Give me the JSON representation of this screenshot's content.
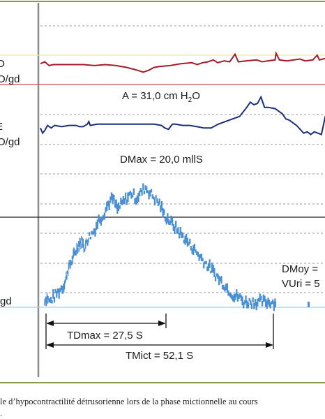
{
  "colors": {
    "frame": "#8a9a44",
    "pressure": "#a31b2c",
    "flow_line": "#1c2d7a",
    "flow_bars": "#4a8fd4",
    "yellow_line": "#f2e98a",
    "red_line": "#cc4a4a",
    "blue_line": "#a9cdea",
    "grid": "#9a9a9a",
    "axis": "#8c8c8c"
  },
  "left_labels": {
    "l1": "D",
    "l2": "O/gd",
    "l3": "E",
    "l4": "O/gd",
    "l5": "gd"
  },
  "annotations": {
    "amplitude": "A = 31,0 cm H",
    "amplitude_sub": "2",
    "amplitude_tail": "O",
    "dmax": "DMax = 20,0 mllS",
    "dmoy": "DMoy = ",
    "vuri": "VUri = 5",
    "tdmax": "TDmax = 27,5 S",
    "tmict": "TMict = 52,1 S"
  },
  "caption": {
    "line1": "le d’hypocontractilité détrusorienne lors de la phase mictionnelle au cours",
    "line2": "."
  },
  "chart_data": {
    "type": "line",
    "title": "",
    "xlabel": "",
    "ylabel": "",
    "series": [
      {
        "values": [
          [
            0,
            8
          ],
          [
            4,
            10
          ],
          [
            8,
            6
          ],
          [
            12,
            7
          ],
          [
            20,
            7
          ],
          [
            30,
            7
          ],
          [
            40,
            7
          ],
          [
            50,
            6
          ],
          [
            60,
            7
          ],
          [
            70,
            6
          ],
          [
            80,
            4
          ],
          [
            90,
            1
          ],
          [
            95,
            -1
          ],
          [
            100,
            1
          ],
          [
            105,
            4
          ],
          [
            110,
            5
          ],
          [
            120,
            6
          ],
          [
            130,
            8
          ],
          [
            140,
            9
          ],
          [
            145,
            7
          ],
          [
            150,
            9
          ],
          [
            155,
            10
          ],
          [
            160,
            12
          ],
          [
            164,
            9
          ],
          [
            170,
            11
          ],
          [
            175,
            10
          ],
          [
            180,
            18
          ],
          [
            183,
            10
          ],
          [
            190,
            11
          ],
          [
            200,
            12
          ],
          [
            205,
            10
          ],
          [
            210,
            11
          ],
          [
            217,
            12
          ],
          [
            218,
            19
          ],
          [
            221,
            12
          ],
          [
            228,
            11
          ],
          [
            240,
            13
          ],
          [
            245,
            11
          ],
          [
            252,
            12
          ],
          [
            256,
            17
          ],
          [
            258,
            12
          ],
          [
            265,
            14
          ],
          [
            270,
            12
          ]
        ]
      },
      {
        "values": [
          [
            0,
            2
          ],
          [
            3,
            -2
          ],
          [
            6,
            0
          ],
          [
            10,
            4
          ],
          [
            15,
            2
          ],
          [
            20,
            4
          ],
          [
            30,
            3
          ],
          [
            40,
            4
          ],
          [
            50,
            4
          ],
          [
            55,
            3
          ],
          [
            60,
            3
          ],
          [
            66,
            5
          ],
          [
            68,
            7
          ],
          [
            70,
            4
          ],
          [
            80,
            5
          ],
          [
            90,
            5
          ],
          [
            100,
            5
          ],
          [
            110,
            5
          ],
          [
            120,
            5
          ],
          [
            130,
            5
          ],
          [
            140,
            5
          ],
          [
            150,
            5
          ],
          [
            160,
            5
          ],
          [
            170,
            4
          ],
          [
            175,
            2
          ],
          [
            180,
            1
          ],
          [
            184,
            4
          ],
          [
            186,
            5
          ],
          [
            190,
            5
          ],
          [
            200,
            4
          ],
          [
            210,
            4
          ],
          [
            220,
            3
          ],
          [
            230,
            2
          ],
          [
            240,
            2
          ],
          [
            250,
            5
          ],
          [
            260,
            7
          ],
          [
            270,
            9
          ],
          [
            280,
            11
          ],
          [
            290,
            18
          ],
          [
            295,
            22
          ],
          [
            300,
            20
          ],
          [
            305,
            21
          ],
          [
            310,
            26
          ],
          [
            315,
            18
          ],
          [
            320,
            18
          ],
          [
            330,
            17
          ],
          [
            335,
            15
          ],
          [
            340,
            13
          ],
          [
            345,
            9
          ],
          [
            350,
            8
          ],
          [
            355,
            6
          ],
          [
            360,
            4
          ],
          [
            370,
            -2
          ],
          [
            375,
            -1
          ],
          [
            380,
            -3
          ],
          [
            385,
            -1
          ],
          [
            390,
            -2
          ],
          [
            395,
            -3
          ],
          [
            400,
            10
          ],
          [
            405,
            5
          ],
          [
            410,
            10
          ]
        ]
      },
      {
        "values": [
          [
            1,
            1
          ],
          [
            2,
            2
          ],
          [
            3,
            1
          ],
          [
            5,
            2
          ],
          [
            7,
            3
          ],
          [
            9,
            4
          ],
          [
            10,
            5
          ],
          [
            11,
            7
          ],
          [
            12,
            8
          ],
          [
            13,
            9
          ],
          [
            14,
            10
          ],
          [
            15,
            11
          ],
          [
            16,
            12
          ],
          [
            17,
            12
          ],
          [
            18,
            11
          ],
          [
            19,
            12
          ],
          [
            20,
            13
          ],
          [
            22,
            14
          ],
          [
            24,
            16
          ],
          [
            26,
            17
          ],
          [
            28,
            19
          ],
          [
            30,
            20
          ],
          [
            32,
            18
          ],
          [
            34,
            19
          ],
          [
            36,
            20
          ],
          [
            38,
            21
          ],
          [
            40,
            20
          ],
          [
            42,
            21
          ],
          [
            44,
            22
          ],
          [
            46,
            21
          ],
          [
            48,
            20
          ],
          [
            50,
            19
          ],
          [
            52,
            17
          ],
          [
            54,
            16
          ],
          [
            56,
            15
          ],
          [
            58,
            14
          ],
          [
            60,
            13
          ],
          [
            62,
            12
          ],
          [
            64,
            11
          ],
          [
            66,
            10
          ],
          [
            68,
            9
          ],
          [
            70,
            8
          ],
          [
            72,
            7
          ],
          [
            74,
            6
          ],
          [
            76,
            5
          ],
          [
            78,
            4
          ],
          [
            80,
            3
          ],
          [
            82,
            2
          ],
          [
            84,
            2
          ],
          [
            86,
            1
          ],
          [
            88,
            1
          ],
          [
            90,
            1
          ],
          [
            92,
            1
          ],
          [
            94,
            1
          ],
          [
            96,
            1
          ],
          [
            98,
            1
          ],
          [
            100,
            1
          ]
        ]
      }
    ],
    "grid": true
  }
}
